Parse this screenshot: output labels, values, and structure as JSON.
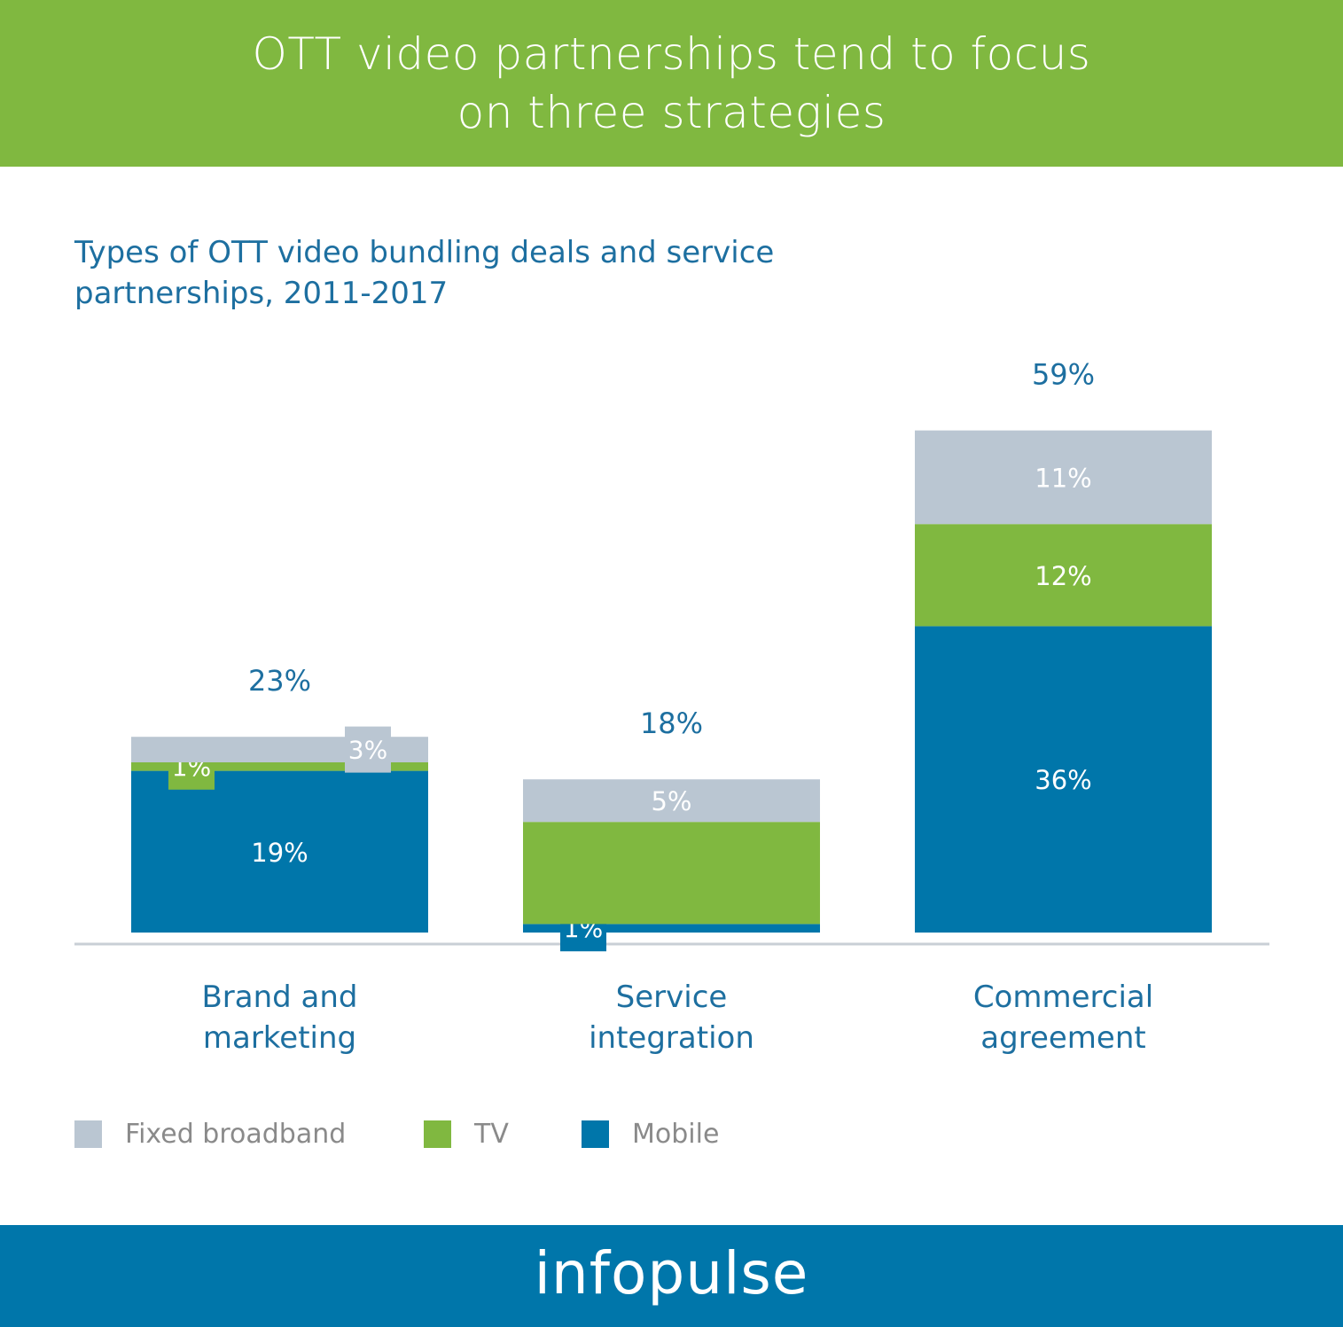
{
  "header": {
    "title": "OTT video partnerships tend to focus on three strategies"
  },
  "colors": {
    "banner": "#80b840",
    "footer": "#0076aa",
    "title_text": "#1d6fa0",
    "label_text": "#1d6fa0"
  },
  "chart_data": {
    "type": "bar",
    "stacked": true,
    "title": "Types of OTT video bundling deals and service partnerships, 2011-2017",
    "categories": [
      "Brand and marketing",
      "Service integration",
      "Commercial agreement"
    ],
    "totals": [
      "23%",
      "18%",
      "59%"
    ],
    "series": [
      {
        "name": "Mobile",
        "color": "#0076aa",
        "values": [
          19,
          1,
          36
        ],
        "labels": [
          "19%",
          "1%",
          "36%"
        ]
      },
      {
        "name": "TV",
        "color": "#80b840",
        "values": [
          1,
          12,
          12
        ],
        "labels": [
          "1%",
          "",
          "12%"
        ]
      },
      {
        "name": "Fixed broadband",
        "color": "#bac6d2",
        "values": [
          3,
          5,
          11
        ],
        "labels": [
          "3%",
          "5%",
          "11%"
        ]
      }
    ],
    "legend": {
      "placement": "bottom-left",
      "order": [
        "Fixed broadband",
        "TV",
        "Mobile"
      ]
    },
    "grid": false
  },
  "footer": {
    "logo": "infopulse"
  }
}
